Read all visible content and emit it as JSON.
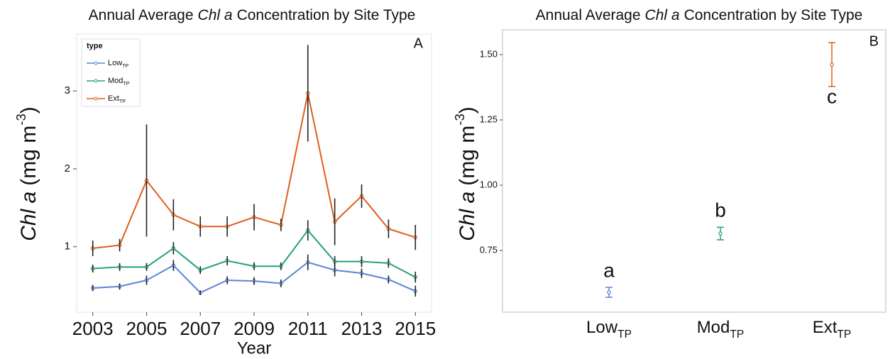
{
  "chart_data": [
    {
      "type": "line",
      "title": {
        "before": "Annual Average",
        "italic": "Chl a",
        "after": "Concentration by Site Type"
      },
      "panel_label": "A",
      "x_label": "Year",
      "y_label": {
        "italic": "Chl a",
        "before": "(mg m",
        "sup": "-3",
        "after": ")"
      },
      "x": [
        2003,
        2004,
        2005,
        2006,
        2007,
        2008,
        2009,
        2010,
        2011,
        2012,
        2013,
        2014,
        2015
      ],
      "xlim": [
        2002.4,
        2015.6
      ],
      "xticks": [
        2003,
        2005,
        2007,
        2009,
        2011,
        2013,
        2015
      ],
      "ylim": [
        0.16,
        3.73
      ],
      "yticks": [
        1,
        2,
        3
      ],
      "error_color": "#222222",
      "legend": {
        "title": "type",
        "position": "top-left"
      },
      "series": [
        {
          "name": "Low",
          "name_sub": "TP",
          "color": "#5b84d6",
          "values": [
            0.47,
            0.49,
            0.57,
            0.76,
            0.41,
            0.57,
            0.56,
            0.53,
            0.8,
            0.7,
            0.66,
            0.58,
            0.43
          ],
          "errors": [
            0.04,
            0.04,
            0.06,
            0.07,
            0.03,
            0.05,
            0.05,
            0.05,
            0.1,
            0.08,
            0.06,
            0.05,
            0.07
          ]
        },
        {
          "name": "Mod",
          "name_sub": "TP",
          "color": "#22a27a",
          "values": [
            0.72,
            0.74,
            0.74,
            0.98,
            0.7,
            0.82,
            0.75,
            0.75,
            1.21,
            0.81,
            0.81,
            0.79,
            0.61
          ],
          "errors": [
            0.05,
            0.05,
            0.05,
            0.08,
            0.05,
            0.06,
            0.05,
            0.05,
            0.13,
            0.07,
            0.07,
            0.06,
            0.07
          ]
        },
        {
          "name": "Ext",
          "name_sub": "TP",
          "color": "#dd5f1c",
          "values": [
            0.98,
            1.02,
            1.85,
            1.41,
            1.26,
            1.26,
            1.38,
            1.28,
            2.97,
            1.32,
            1.65,
            1.23,
            1.12
          ],
          "errors": [
            0.1,
            0.08,
            0.72,
            0.2,
            0.13,
            0.13,
            0.17,
            0.08,
            0.62,
            0.3,
            0.15,
            0.12,
            0.16
          ]
        }
      ]
    },
    {
      "type": "errorbar",
      "title": {
        "before": "Annual Average",
        "italic": "Chl a",
        "after": "Concentration by Site Type"
      },
      "panel_label": "B",
      "y_label": {
        "italic": "Chl a",
        "before": "(mg m",
        "sup": "-3",
        "after": ")"
      },
      "categories": [
        "Low",
        "Mod",
        "Ext"
      ],
      "category_sub": [
        "TP",
        "TP",
        "TP"
      ],
      "values": [
        0.59,
        0.815,
        1.462
      ],
      "errors": [
        0.019,
        0.024,
        0.084
      ],
      "colors": [
        "#5b84d6",
        "#22a27a",
        "#dd5f1c"
      ],
      "letters": [
        "a",
        "b",
        "c"
      ],
      "ylim": [
        0.514,
        1.595
      ],
      "yticks": [
        {
          "value": 0.75,
          "label": "0.75"
        },
        {
          "value": 1.0,
          "label": "1.00"
        },
        {
          "value": 1.25,
          "label": "1.25"
        },
        {
          "value": 1.5,
          "label": "1.50"
        }
      ]
    }
  ]
}
